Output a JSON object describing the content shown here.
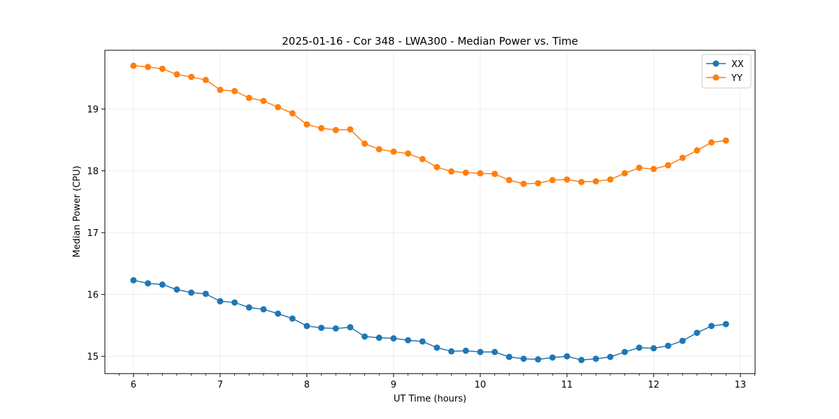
{
  "chart_data": {
    "type": "line",
    "title": "2025-01-16 - Cor 348 - LWA300 - Median Power vs. Time",
    "xlabel": "UT Time (hours)",
    "ylabel": "Median Power (CPU)",
    "xlim": [
      5.67,
      13.17
    ],
    "ylim": [
      14.72,
      19.95
    ],
    "xticks": [
      6,
      7,
      8,
      9,
      10,
      11,
      12,
      13
    ],
    "yticks": [
      15,
      16,
      17,
      18,
      19
    ],
    "xtick_labels": [
      "6",
      "7",
      "8",
      "9",
      "10",
      "11",
      "12",
      "13"
    ],
    "ytick_labels": [
      "15",
      "16",
      "17",
      "18",
      "19"
    ],
    "grid": true,
    "legend_position": "top-right",
    "x": [
      6.0,
      6.1667,
      6.3333,
      6.5,
      6.6667,
      6.8333,
      7.0,
      7.1667,
      7.3333,
      7.5,
      7.6667,
      7.8333,
      8.0,
      8.1667,
      8.3333,
      8.5,
      8.6667,
      8.8333,
      9.0,
      9.1667,
      9.3333,
      9.5,
      9.6667,
      9.8333,
      10.0,
      10.1667,
      10.3333,
      10.5,
      10.6667,
      10.8333,
      11.0,
      11.1667,
      11.3333,
      11.5,
      11.6667,
      11.8333,
      12.0,
      12.1667,
      12.3333,
      12.5,
      12.6667,
      12.8333
    ],
    "series": [
      {
        "name": "XX",
        "color": "#1f77b4",
        "values": [
          16.23,
          16.18,
          16.16,
          16.08,
          16.03,
          16.01,
          15.89,
          15.87,
          15.79,
          15.76,
          15.69,
          15.61,
          15.49,
          15.46,
          15.45,
          15.47,
          15.32,
          15.3,
          15.29,
          15.26,
          15.24,
          15.14,
          15.08,
          15.09,
          15.07,
          15.07,
          14.99,
          14.96,
          14.95,
          14.98,
          15.0,
          14.94,
          14.96,
          14.99,
          15.07,
          15.14,
          15.13,
          15.17,
          15.25,
          15.38,
          15.49,
          15.52
        ]
      },
      {
        "name": "YY",
        "color": "#ff7f0e",
        "values": [
          19.7,
          19.68,
          19.65,
          19.56,
          19.52,
          19.47,
          19.31,
          19.29,
          19.18,
          19.13,
          19.03,
          18.93,
          18.75,
          18.69,
          18.66,
          18.67,
          18.44,
          18.35,
          18.31,
          18.28,
          18.19,
          18.06,
          17.99,
          17.97,
          17.96,
          17.95,
          17.85,
          17.79,
          17.8,
          17.85,
          17.86,
          17.82,
          17.83,
          17.86,
          17.96,
          18.05,
          18.03,
          18.09,
          18.21,
          18.33,
          18.46,
          18.49
        ]
      }
    ]
  }
}
